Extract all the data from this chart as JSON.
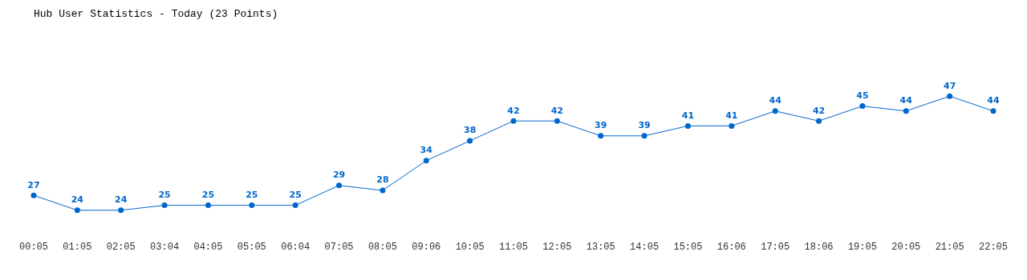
{
  "chart_data": {
    "type": "line",
    "title": "Hub User Statistics - Today (23 Points)",
    "categories": [
      "00:05",
      "01:05",
      "02:05",
      "03:04",
      "04:05",
      "05:05",
      "06:04",
      "07:05",
      "08:05",
      "09:06",
      "10:05",
      "11:05",
      "12:05",
      "13:05",
      "14:05",
      "15:05",
      "16:06",
      "17:05",
      "18:06",
      "19:05",
      "20:05",
      "21:05",
      "22:05"
    ],
    "series": [
      {
        "color": "#0066cc",
        "values": [
          27,
          24,
          24,
          25,
          25,
          25,
          25,
          29,
          28,
          34,
          38,
          42,
          42,
          39,
          39,
          41,
          41,
          44,
          42,
          45,
          44,
          47,
          44
        ]
      }
    ],
    "data_labels": true,
    "grid": false,
    "legend": false,
    "tick_labels": "x",
    "marker": "circle",
    "line_style": "solid"
  }
}
